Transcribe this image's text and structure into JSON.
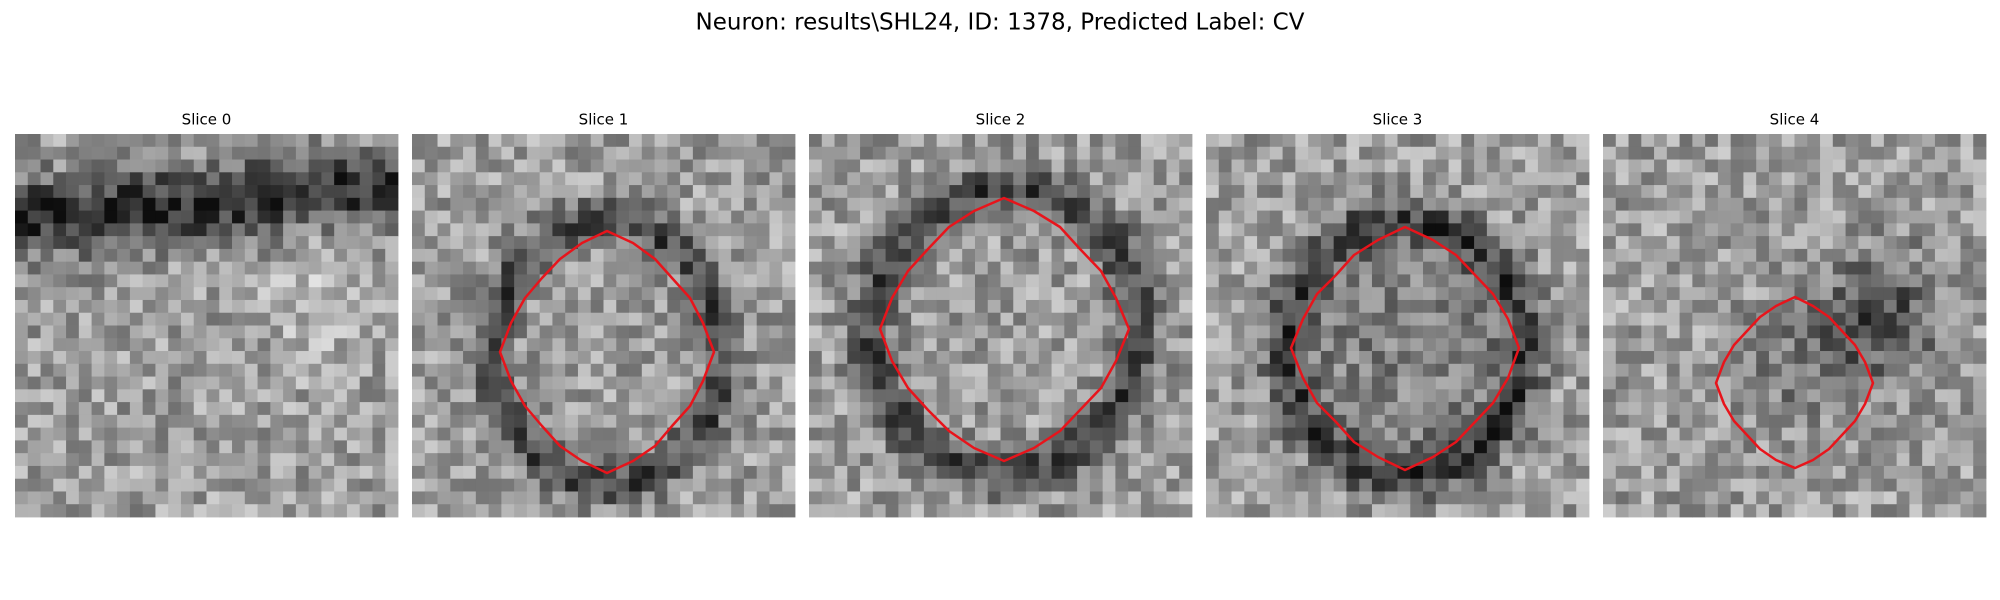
{
  "title": "Neuron: results\\SHL24, ID: 1378, Predicted Label: CV",
  "panels": [
    {
      "title": "Slice 0"
    },
    {
      "title": "Slice 1"
    },
    {
      "title": "Slice 2"
    },
    {
      "title": "Slice 3"
    },
    {
      "title": "Slice 4"
    }
  ]
}
